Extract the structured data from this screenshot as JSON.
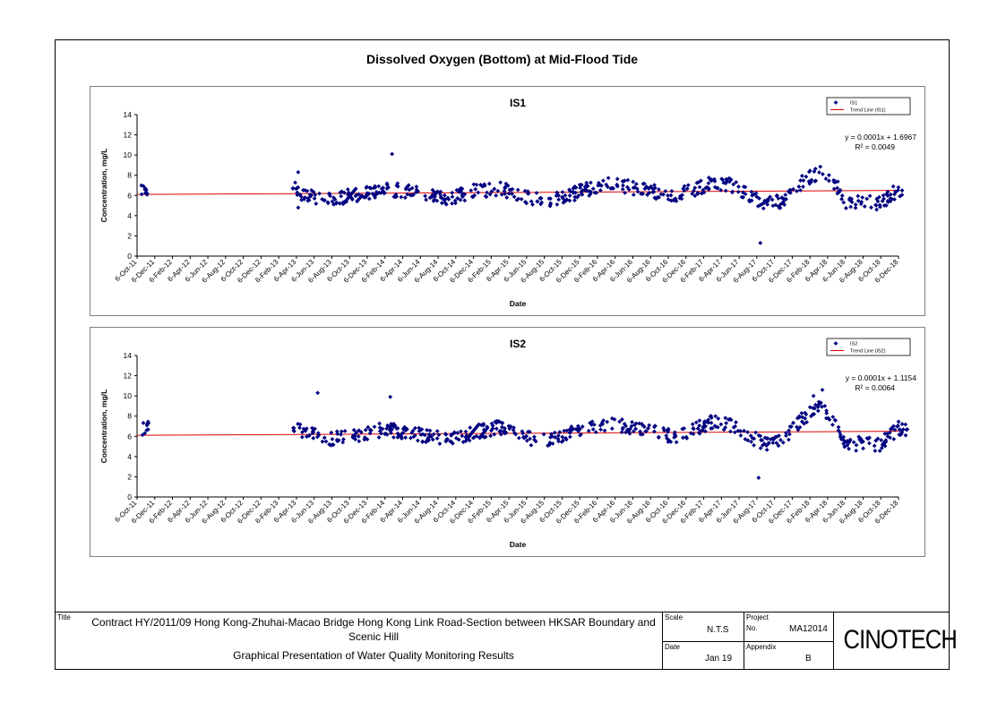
{
  "page_title": "Dissolved Oxygen (Bottom) at Mid-Flood Tide",
  "chart_data": [
    {
      "type": "scatter",
      "title": "IS1",
      "xlabel": "Date",
      "ylabel": "Concentration, mg/L",
      "ylim": [
        0,
        14
      ],
      "yticks": [
        0,
        2,
        4,
        6,
        8,
        10,
        12,
        14
      ],
      "xticks": [
        "6-Oct-11",
        "6-Dec-11",
        "6-Feb-12",
        "6-Apr-12",
        "6-Jun-12",
        "6-Aug-12",
        "6-Oct-12",
        "6-Dec-12",
        "6-Feb-13",
        "6-Apr-13",
        "6-Jun-13",
        "6-Aug-13",
        "6-Oct-13",
        "6-Dec-13",
        "6-Feb-14",
        "6-Apr-14",
        "6-Jun-14",
        "6-Aug-14",
        "6-Oct-14",
        "6-Dec-14",
        "6-Feb-15",
        "6-Apr-15",
        "6-Jun-15",
        "6-Aug-15",
        "6-Oct-15",
        "6-Dec-15",
        "6-Feb-16",
        "6-Apr-16",
        "6-Jun-16",
        "6-Aug-16",
        "6-Oct-16",
        "6-Dec-16",
        "6-Feb-17",
        "6-Apr-17",
        "6-Jun-17",
        "6-Aug-17",
        "6-Oct-17",
        "6-Dec-17",
        "6-Feb-18",
        "6-Apr-18",
        "6-Jun-18",
        "6-Aug-18",
        "6-Oct-18",
        "6-Dec-18"
      ],
      "legend": {
        "position": "top-right",
        "entries": [
          "IS1",
          "Trend Line (IS1)"
        ]
      },
      "equation": "y = 0.0001x + 1.6967",
      "r_squared": "R² = 0.0049",
      "trend": {
        "start": 6.1,
        "end": 6.5
      },
      "series": [
        {
          "name": "IS1",
          "color": "#000080",
          "profile": [
            [
              0,
              6.3
            ],
            [
              0.75,
              6.8
            ],
            [
              8.75,
              6.8
            ],
            [
              9.5,
              6.0
            ],
            [
              11,
              5.6
            ],
            [
              13,
              6.3
            ],
            [
              14,
              6.7
            ],
            [
              16,
              6.2
            ],
            [
              17.5,
              5.6
            ],
            [
              19,
              6.4
            ],
            [
              20.5,
              6.7
            ],
            [
              22,
              5.8
            ],
            [
              23.5,
              5.6
            ],
            [
              24.5,
              6.1
            ],
            [
              26.5,
              7.2
            ],
            [
              28.5,
              6.6
            ],
            [
              30.5,
              6.0
            ],
            [
              32.5,
              7.3
            ],
            [
              33.5,
              7.1
            ],
            [
              34.5,
              6.0
            ],
            [
              35.5,
              5.2
            ],
            [
              36.5,
              5.5
            ],
            [
              37.5,
              7.2
            ],
            [
              38.5,
              8.3
            ],
            [
              39.5,
              7.0
            ],
            [
              40,
              5.3
            ],
            [
              42,
              5.3
            ],
            [
              43,
              6.6
            ],
            [
              43.5,
              6.6
            ]
          ],
          "outliers": [
            [
              14.4,
              10.1
            ],
            [
              9.1,
              8.3
            ],
            [
              35.2,
              1.3
            ],
            [
              9.1,
              4.8
            ]
          ]
        }
      ]
    },
    {
      "type": "scatter",
      "title": "IS2",
      "xlabel": "Date",
      "ylabel": "Concentration, mg/L",
      "ylim": [
        0,
        14
      ],
      "yticks": [
        0,
        2,
        4,
        6,
        8,
        10,
        12,
        14
      ],
      "xticks": [
        "6-Oct-11",
        "6-Dec-11",
        "6-Feb-12",
        "6-Apr-12",
        "6-Jun-12",
        "6-Aug-12",
        "6-Oct-12",
        "6-Dec-12",
        "6-Feb-13",
        "6-Apr-13",
        "6-Jun-13",
        "6-Aug-13",
        "6-Oct-13",
        "6-Dec-13",
        "6-Feb-14",
        "6-Apr-14",
        "6-Jun-14",
        "6-Aug-14",
        "6-Oct-14",
        "6-Dec-14",
        "6-Feb-15",
        "6-Apr-15",
        "6-Jun-15",
        "6-Aug-15",
        "6-Oct-15",
        "6-Dec-15",
        "6-Feb-16",
        "6-Apr-16",
        "6-Jun-16",
        "6-Aug-16",
        "6-Oct-16",
        "6-Dec-16",
        "6-Feb-17",
        "6-Apr-17",
        "6-Jun-17",
        "6-Aug-17",
        "6-Oct-17",
        "6-Dec-17",
        "6-Feb-18",
        "6-Apr-18",
        "6-Jun-18",
        "6-Aug-18",
        "6-Oct-18",
        "6-Dec-18"
      ],
      "legend": {
        "position": "top-right",
        "entries": [
          "IS2",
          "Trend Line (IS2)"
        ]
      },
      "equation": "y = 0.0001x + 1.1154",
      "r_squared": "R² = 0.0064",
      "trend": {
        "start": 6.1,
        "end": 6.5
      },
      "series": [
        {
          "name": "IS2",
          "color": "#000080",
          "profile": [
            [
              0,
              6.3
            ],
            [
              0.75,
              7.0
            ],
            [
              8.75,
              7.0
            ],
            [
              9.5,
              6.3
            ],
            [
              11,
              5.7
            ],
            [
              13,
              6.3
            ],
            [
              14,
              6.7
            ],
            [
              16,
              6.2
            ],
            [
              17.5,
              5.6
            ],
            [
              19,
              6.4
            ],
            [
              20.5,
              6.9
            ],
            [
              22,
              5.8
            ],
            [
              23.5,
              5.7
            ],
            [
              24.5,
              6.3
            ],
            [
              26.5,
              7.3
            ],
            [
              28.5,
              6.6
            ],
            [
              30.5,
              6.0
            ],
            [
              32.5,
              7.4
            ],
            [
              33.5,
              7.1
            ],
            [
              34.5,
              6.0
            ],
            [
              35.5,
              5.3
            ],
            [
              36.5,
              5.6
            ],
            [
              37.5,
              7.6
            ],
            [
              38.5,
              9.0
            ],
            [
              39.5,
              7.0
            ],
            [
              40,
              5.3
            ],
            [
              42,
              5.2
            ],
            [
              43,
              6.8
            ],
            [
              43.5,
              6.7
            ]
          ],
          "outliers": [
            [
              10.2,
              10.3
            ],
            [
              14.3,
              9.9
            ],
            [
              35.1,
              1.9
            ],
            [
              38.7,
              10.6
            ],
            [
              38.2,
              10.0
            ]
          ]
        }
      ]
    }
  ],
  "footer": {
    "title_label": "Title",
    "contract_text": "Contract HY/2011/09 Hong Kong-Zhuhai-Macao Bridge Hong Kong Link Road-Section between HKSAR Boundary and Scenic Hill",
    "presentation_text": "Graphical Presentation of Water Quality Monitoring Results",
    "scale_label": "Scale",
    "scale_value": "N.T.S",
    "project_label": "Project",
    "project_no_label": "No.",
    "project_value": "MA12014",
    "date_label": "Date",
    "date_value": "Jan 19",
    "appendix_label": "Appendix",
    "appendix_value": "B",
    "logo_text": "CINOTECH"
  }
}
